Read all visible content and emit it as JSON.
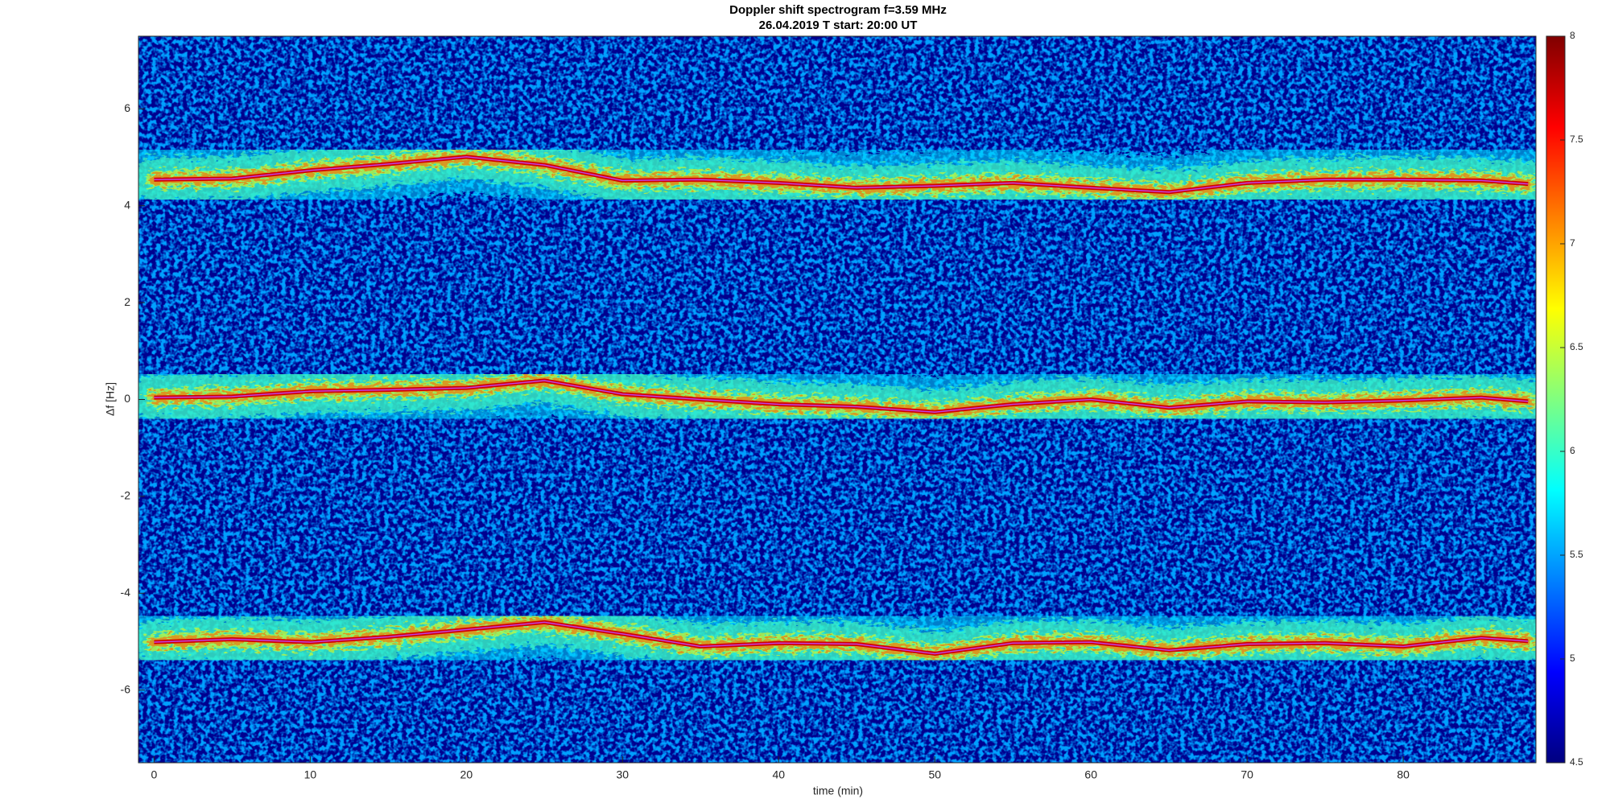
{
  "chart_data": {
    "type": "spectrogram",
    "title": "Doppler shift spectrogram f=3.59 MHz",
    "subtitle": "26.04.2019   T start: 20:00 UT",
    "x_label": "time (min)",
    "y_label": "Δf [Hz]",
    "colormap": "jet",
    "x": [
      0,
      5,
      10,
      15,
      20,
      25,
      30,
      35,
      40,
      45,
      50,
      55,
      60,
      65,
      70,
      75,
      80,
      85,
      88
    ],
    "series": [
      {
        "color": "#c040e0",
        "values": [
          4.54,
          4.56,
          4.73,
          4.86,
          5.01,
          4.84,
          4.52,
          4.54,
          4.47,
          4.37,
          4.41,
          4.47,
          4.37,
          4.28,
          4.47,
          4.54,
          4.54,
          4.52,
          4.45
        ]
      },
      {
        "color": "#c040e0",
        "values": [
          0.04,
          0.06,
          0.17,
          0.2,
          0.24,
          0.39,
          0.11,
          0,
          -0.1,
          -0.15,
          -0.26,
          -0.1,
          0,
          -0.17,
          -0.04,
          -0.06,
          -0.02,
          0.04,
          -0.04
        ]
      },
      {
        "color": "#c040e0",
        "values": [
          -5.01,
          -4.95,
          -5.01,
          -4.9,
          -4.75,
          -4.6,
          -4.84,
          -5.1,
          -5.03,
          -5.05,
          -5.25,
          -5.03,
          -5.01,
          -5.18,
          -5.05,
          -5.03,
          -5.1,
          -4.92,
          -4.99
        ]
      }
    ],
    "xlim": [
      -1,
      88.5
    ],
    "ylim": [
      -7.5,
      7.5
    ],
    "xticks": [
      0,
      10,
      20,
      30,
      40,
      50,
      60,
      70,
      80
    ],
    "yticks": [
      -6,
      -4,
      -2,
      0,
      2,
      4,
      6
    ],
    "clim": [
      4.5,
      8
    ],
    "cticks": [
      4.5,
      5,
      5.5,
      6,
      6.5,
      7,
      7.5,
      8
    ]
  }
}
